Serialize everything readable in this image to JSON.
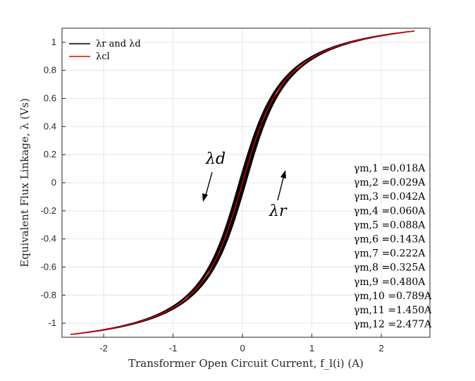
{
  "chart_data": {
    "type": "line",
    "title": "",
    "xlabel": "Transformer Open Circuit Current, f_l(i) (A)",
    "ylabel": "Equivalent Flux Linkage, λ (Vs)",
    "xlim": [
      -2.6,
      2.7
    ],
    "ylim": [
      -1.1,
      1.1
    ],
    "xticks": [
      -2,
      -1,
      0,
      1,
      2
    ],
    "yticks": [
      -1,
      -0.8,
      -0.6,
      -0.4,
      -0.2,
      0,
      0.2,
      0.4,
      0.6,
      0.8,
      1
    ],
    "xtick_labels": [
      "-2",
      "-1",
      "0",
      "1",
      "2"
    ],
    "ytick_labels": [
      "-1",
      "-0.8",
      "-0.6",
      "-0.4",
      "-0.2",
      "0",
      "0.2",
      "0.4",
      "0.6",
      "0.8",
      "1"
    ],
    "grid": true,
    "legend": {
      "placement": "top-left",
      "entries": [
        {
          "label": "λr and λd",
          "color": "#000000"
        },
        {
          "label": "λcl",
          "color": "#e00000"
        }
      ]
    },
    "curve_model": {
      "lambda_max": 1.08,
      "i_max_outer": 2.477,
      "loop_width_outer": 0.035,
      "shape_k": 2.2
    },
    "loops_gamma_m": [
      0.018,
      0.029,
      0.042,
      0.06,
      0.088,
      0.143,
      0.222,
      0.325,
      0.48,
      0.789,
      1.45,
      2.477
    ],
    "annotations": {
      "gammas": [
        {
          "label": "γm,1 =0.018A"
        },
        {
          "label": "γm,2 =0.029A"
        },
        {
          "label": "γm,3 =0.042A"
        },
        {
          "label": "γm,4 =0.060A"
        },
        {
          "label": "γm,5 =0.088A"
        },
        {
          "label": "γm,6 =0.143A"
        },
        {
          "label": "γm,7 =0.222A"
        },
        {
          "label": "γm,8 =0.325A"
        },
        {
          "label": "γm,9 =0.480A"
        },
        {
          "label": "γm,10 =0.789A"
        },
        {
          "label": "γm,11 =1.450A"
        },
        {
          "label": "γm,12 =2.477A"
        }
      ],
      "lambda_d": "λd",
      "lambda_r": "λr"
    },
    "colors": {
      "loops": "#000000",
      "center_line": "#e00000",
      "grid": "#e6e6e6",
      "axis": "#262626"
    }
  }
}
